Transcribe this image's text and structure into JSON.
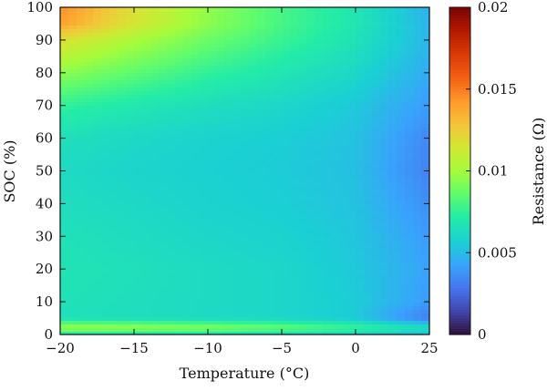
{
  "chart_data": {
    "type": "heatmap",
    "title": "",
    "xlabel": "Temperature (°C)",
    "ylabel": "SOC (%)",
    "colorbar_label": "Resistance (Ω)",
    "colormap": "turbo",
    "x_range": [
      -20,
      25
    ],
    "y_range": [
      0,
      100
    ],
    "x_ticks": [
      -20,
      -15,
      -10,
      -5,
      0,
      25
    ],
    "x_tick_labels": [
      "−20",
      "−15",
      "−10",
      "−5",
      "0",
      "25"
    ],
    "y_ticks": [
      0,
      10,
      20,
      30,
      40,
      50,
      60,
      70,
      80,
      90,
      100
    ],
    "y_tick_labels": [
      "0",
      "10",
      "20",
      "30",
      "40",
      "50",
      "60",
      "70",
      "80",
      "90",
      "100"
    ],
    "color_range": [
      0,
      0.02
    ],
    "colorbar_ticks": [
      0,
      0.005,
      0.01,
      0.015,
      0.02
    ],
    "colorbar_tick_labels": [
      "0",
      "0.005",
      "0.01",
      "0.015",
      "0.02"
    ],
    "x": [
      -20,
      -15,
      -10,
      -5,
      0,
      25
    ],
    "y": [
      0,
      2,
      5,
      10,
      20,
      30,
      40,
      50,
      60,
      70,
      80,
      90,
      95,
      100
    ],
    "z": [
      [
        0.0068,
        0.0066,
        0.0064,
        0.0062,
        0.0058,
        0.005
      ],
      [
        0.01,
        0.0098,
        0.0094,
        0.0088,
        0.0078,
        0.0065
      ],
      [
        0.0065,
        0.0064,
        0.0062,
        0.006,
        0.0055,
        0.003
      ],
      [
        0.0066,
        0.0064,
        0.0062,
        0.006,
        0.0055,
        0.004
      ],
      [
        0.0067,
        0.0065,
        0.0062,
        0.006,
        0.0054,
        0.0042
      ],
      [
        0.0066,
        0.0063,
        0.006,
        0.0058,
        0.0053,
        0.004
      ],
      [
        0.0064,
        0.0061,
        0.0058,
        0.0056,
        0.0052,
        0.0036
      ],
      [
        0.0062,
        0.0059,
        0.0057,
        0.0055,
        0.0051,
        0.0032
      ],
      [
        0.0065,
        0.0061,
        0.0058,
        0.0056,
        0.0052,
        0.0034
      ],
      [
        0.0075,
        0.0069,
        0.0064,
        0.006,
        0.0054,
        0.004
      ],
      [
        0.0095,
        0.0085,
        0.0075,
        0.0068,
        0.006,
        0.0045
      ],
      [
        0.0118,
        0.0102,
        0.0088,
        0.0077,
        0.0066,
        0.0048
      ],
      [
        0.014,
        0.0115,
        0.0095,
        0.008,
        0.0068,
        0.0048
      ],
      [
        0.0145,
        0.0118,
        0.0096,
        0.008,
        0.0068,
        0.0046
      ]
    ]
  }
}
